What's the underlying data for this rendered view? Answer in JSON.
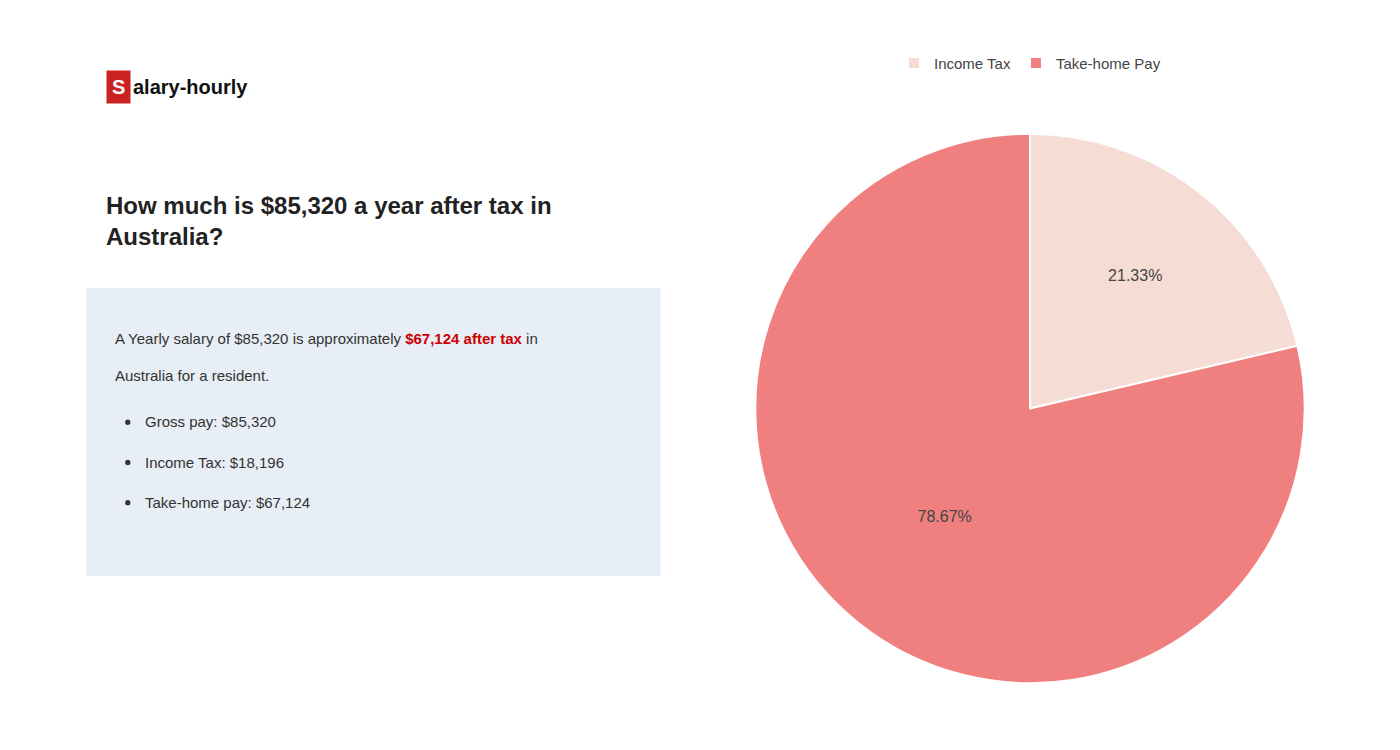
{
  "chart_data": {
    "type": "pie",
    "title": "How much is $85,320 a year after tax in\nAustralia?",
    "categories": [
      "Income Tax",
      "Take-home Pay"
    ],
    "values": [
      21.33,
      78.67
    ],
    "value_labels": [
      "21.33%",
      "78.67%"
    ],
    "colors": [
      "#f5ddd5",
      "#f08080"
    ],
    "data_labels": true,
    "legend": "top",
    "annotations": [
      "S",
      "alary-hourly",
      "A Yearly salary of $85,320 is approximately ",
      "$67,124 after tax",
      " in",
      "Australia for a resident.",
      "Gross pay: $85,320",
      "Income Tax: $18,196",
      "Take-home pay: $67,124"
    ]
  }
}
